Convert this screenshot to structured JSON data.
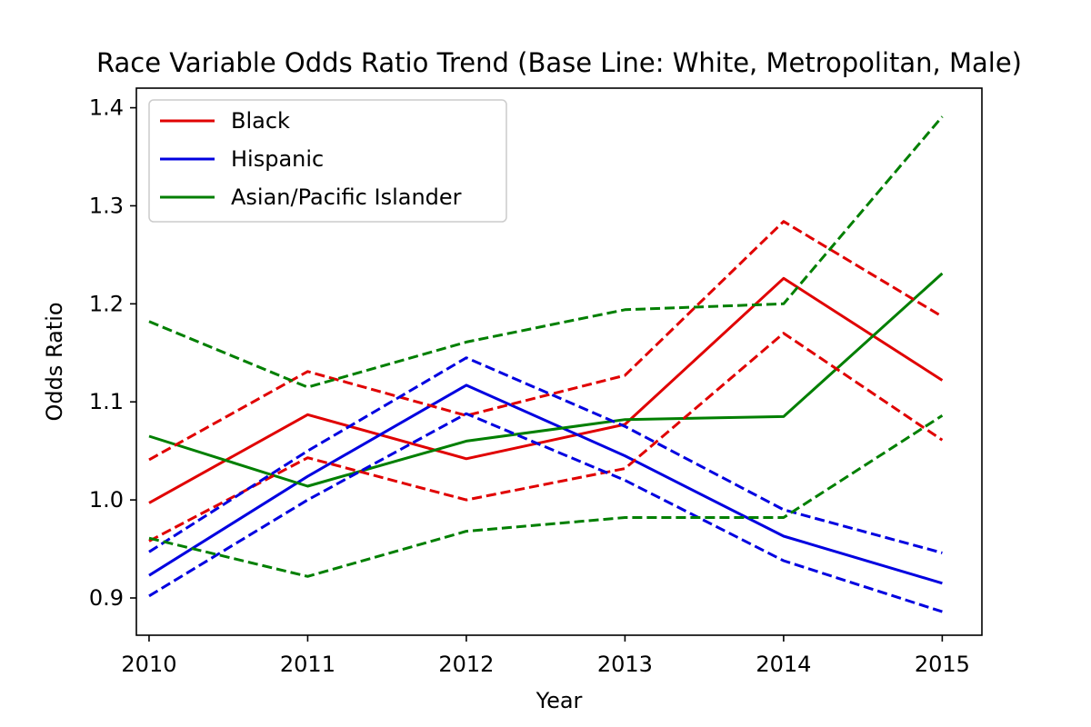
{
  "chart_data": {
    "type": "line",
    "title": "Race Variable Odds Ratio Trend (Base Line: White, Metropolitan, Male)",
    "xlabel": "Year",
    "ylabel": "Odds Ratio",
    "x": [
      2010,
      2011,
      2012,
      2013,
      2014,
      2015
    ],
    "x_tick_labels": [
      "2010",
      "2011",
      "2012",
      "2013",
      "2014",
      "2015"
    ],
    "y_ticks": [
      0.9,
      1.0,
      1.1,
      1.2,
      1.3,
      1.4
    ],
    "y_tick_labels": [
      "0.9",
      "1.0",
      "1.1",
      "1.2",
      "1.3",
      "1.4"
    ],
    "xlim": [
      2009.92,
      2015.25
    ],
    "ylim": [
      0.862,
      1.42
    ],
    "grid": false,
    "legend_placement": "top-left",
    "series": [
      {
        "name": "Black",
        "color": "#e00000",
        "style": "solid",
        "values": [
          0.997,
          1.087,
          1.042,
          1.077,
          1.226,
          1.122
        ]
      },
      {
        "name": "Hispanic",
        "color": "#0000e0",
        "style": "solid",
        "values": [
          0.923,
          1.024,
          1.117,
          1.045,
          0.963,
          0.915
        ]
      },
      {
        "name": "Asian/Pacific Islander",
        "color": "#007f00",
        "style": "solid",
        "values": [
          1.065,
          1.014,
          1.06,
          1.082,
          1.085,
          1.231
        ]
      },
      {
        "color": "#e00000",
        "style": "dashed",
        "values": [
          1.041,
          1.131,
          1.086,
          1.127,
          1.284,
          1.187
        ]
      },
      {
        "color": "#e00000",
        "style": "dashed",
        "values": [
          0.958,
          1.043,
          1.0,
          1.032,
          1.17,
          1.061
        ]
      },
      {
        "color": "#0000e0",
        "style": "dashed",
        "values": [
          0.947,
          1.05,
          1.145,
          1.075,
          0.99,
          0.946
        ]
      },
      {
        "color": "#0000e0",
        "style": "dashed",
        "values": [
          0.902,
          1.0,
          1.088,
          1.02,
          0.938,
          0.886
        ]
      },
      {
        "color": "#007f00",
        "style": "dashed",
        "values": [
          1.182,
          1.115,
          1.161,
          1.194,
          1.2,
          1.391
        ]
      },
      {
        "color": "#007f00",
        "style": "dashed",
        "values": [
          0.961,
          0.922,
          0.968,
          0.982,
          0.982,
          1.086
        ]
      }
    ]
  }
}
